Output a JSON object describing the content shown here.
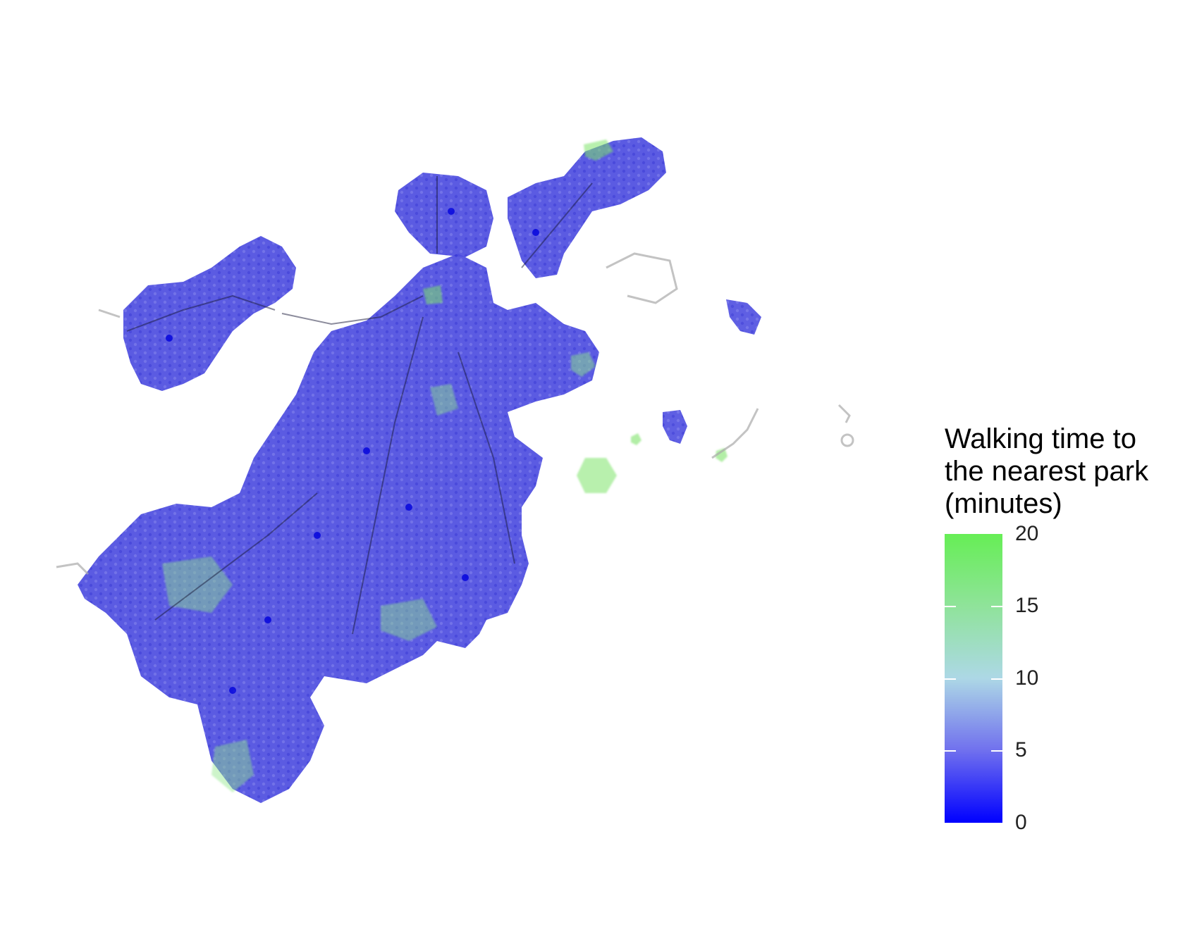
{
  "legend": {
    "title_line1": "Walking time to",
    "title_line2": "the nearest park",
    "title_line3": "(minutes)",
    "ticks": [
      "20",
      "15",
      "10",
      "5",
      "0"
    ],
    "scale": {
      "min": 0,
      "max": 20
    },
    "colors": {
      "low": "#0000ff",
      "mid_low": "#7070ee",
      "mid": "#add8e6",
      "mid_high": "#8fe39a",
      "high": "#66ee55"
    }
  },
  "map": {
    "fill_note": "hexagon bins colored by walking time; predominantly 0-8 minutes with green fringe areas",
    "road_color": "#000000",
    "background": "#ffffff"
  }
}
